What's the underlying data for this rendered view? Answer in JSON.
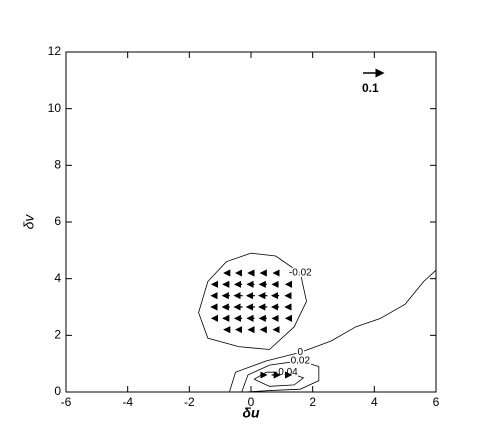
{
  "chart_data": {
    "type": "vector-contour",
    "xlabel": "δu",
    "ylabel": "δv",
    "xlim": [
      -6,
      6
    ],
    "ylim": [
      0,
      12
    ],
    "xticks": [
      -6,
      -4,
      -2,
      0,
      2,
      4,
      6
    ],
    "yticks": [
      0,
      2,
      4,
      6,
      8,
      10,
      12
    ],
    "reference_vector": 0.1,
    "vectors": {
      "x": [
        -0.8,
        -0.4,
        0,
        0.4,
        0.8,
        -1.2,
        -0.8,
        -0.4,
        0,
        0.4,
        0.8,
        1.2,
        -1.2,
        -0.8,
        -0.4,
        0,
        0.4,
        0.8,
        1.2,
        -1.2,
        -0.8,
        -0.4,
        0,
        0.4,
        0.8,
        1.2,
        -1.2,
        -0.8,
        -0.4,
        0,
        0.4,
        0.8,
        1.2,
        -0.8,
        -0.4,
        0,
        0.4,
        0.8,
        0.4,
        0.8,
        1.2
      ],
      "y": [
        4.2,
        4.2,
        4.2,
        4.2,
        4.2,
        3.8,
        3.8,
        3.8,
        3.8,
        3.8,
        3.8,
        3.8,
        3.4,
        3.4,
        3.4,
        3.4,
        3.4,
        3.4,
        3.4,
        3.0,
        3.0,
        3.0,
        3.0,
        3.0,
        3.0,
        3.0,
        2.6,
        2.6,
        2.6,
        2.6,
        2.6,
        2.6,
        2.6,
        2.2,
        2.2,
        2.2,
        2.2,
        2.2,
        0.6,
        0.6,
        0.6
      ],
      "u": [
        -0.02,
        -0.025,
        -0.025,
        -0.025,
        -0.02,
        -0.02,
        -0.03,
        -0.035,
        -0.035,
        -0.035,
        -0.03,
        -0.02,
        -0.025,
        -0.035,
        -0.04,
        -0.04,
        -0.04,
        -0.035,
        -0.025,
        -0.025,
        -0.035,
        -0.04,
        -0.04,
        -0.04,
        -0.035,
        -0.025,
        -0.02,
        -0.03,
        -0.035,
        -0.035,
        -0.035,
        -0.03,
        -0.02,
        -0.02,
        -0.025,
        -0.025,
        -0.025,
        -0.02,
        0.03,
        0.04,
        0.03
      ],
      "v": [
        0,
        0,
        0,
        0,
        0,
        0,
        0,
        0,
        0,
        0,
        0,
        0,
        0,
        0,
        0,
        0,
        0,
        0,
        0,
        0,
        0,
        0,
        0,
        0,
        0,
        0,
        0,
        0,
        0,
        0,
        0,
        0,
        0,
        0,
        0,
        0,
        0,
        0,
        0,
        0,
        0
      ]
    },
    "contours": [
      {
        "level": -0.02,
        "x": [
          -1.4,
          -0.8,
          0,
          0.8,
          1.6,
          1.8,
          1.4,
          0.6,
          -0.4,
          -1.4,
          -1.7,
          -1.4
        ],
        "y": [
          3.9,
          4.6,
          4.9,
          4.8,
          4.2,
          3.2,
          2.3,
          1.5,
          1.6,
          1.9,
          2.8,
          3.9
        ]
      },
      {
        "level": 0,
        "x": [
          -0.7,
          -0.5,
          0.5,
          1.6,
          2.6,
          3.4,
          4.2,
          5,
          5.6,
          6
        ],
        "y": [
          0,
          0.7,
          1.1,
          1.4,
          1.8,
          2.3,
          2.6,
          3.1,
          3.9,
          4.3
        ]
      },
      {
        "level": 0.02,
        "x": [
          -0.3,
          -0.1,
          0.6,
          1.6,
          2.2,
          2.2,
          1.6,
          0.6,
          -0.2,
          -0.3
        ],
        "y": [
          0,
          0.6,
          0.95,
          1.1,
          0.9,
          0.4,
          0.1,
          0.05,
          0,
          0
        ]
      },
      {
        "level": 0.04,
        "x": [
          0.1,
          0.5,
          1.2,
          1.7,
          1.4,
          0.6,
          0.1
        ],
        "y": [
          0.45,
          0.7,
          0.7,
          0.5,
          0.25,
          0.2,
          0.45
        ]
      }
    ]
  }
}
